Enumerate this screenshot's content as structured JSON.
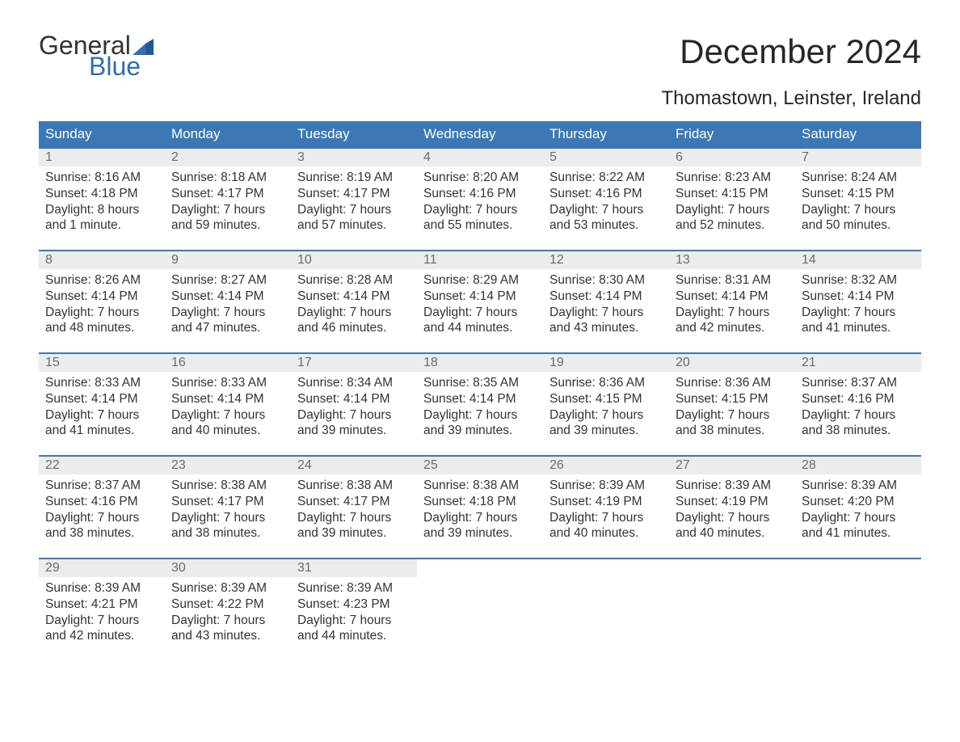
{
  "brand": {
    "word1": "General",
    "word2": "Blue",
    "text_color": "#333333",
    "accent_color": "#2f6fae"
  },
  "header": {
    "month_title": "December 2024",
    "location": "Thomastown, Leinster, Ireland"
  },
  "style": {
    "header_bg": "#3b78b5",
    "header_text": "#ffffff",
    "daynum_bg": "#ececec",
    "daynum_border": "#3b78b5",
    "daynum_text": "#6b6b6b",
    "body_text": "#333333",
    "page_bg": "#ffffff",
    "day_header_fontsize": 17,
    "title_fontsize": 42,
    "location_fontsize": 24,
    "cell_fontsize": 15.5
  },
  "day_headers": [
    "Sunday",
    "Monday",
    "Tuesday",
    "Wednesday",
    "Thursday",
    "Friday",
    "Saturday"
  ],
  "weeks": [
    [
      {
        "n": "1",
        "sr": "Sunrise: 8:16 AM",
        "ss": "Sunset: 4:18 PM",
        "d1": "Daylight: 8 hours",
        "d2": "and 1 minute."
      },
      {
        "n": "2",
        "sr": "Sunrise: 8:18 AM",
        "ss": "Sunset: 4:17 PM",
        "d1": "Daylight: 7 hours",
        "d2": "and 59 minutes."
      },
      {
        "n": "3",
        "sr": "Sunrise: 8:19 AM",
        "ss": "Sunset: 4:17 PM",
        "d1": "Daylight: 7 hours",
        "d2": "and 57 minutes."
      },
      {
        "n": "4",
        "sr": "Sunrise: 8:20 AM",
        "ss": "Sunset: 4:16 PM",
        "d1": "Daylight: 7 hours",
        "d2": "and 55 minutes."
      },
      {
        "n": "5",
        "sr": "Sunrise: 8:22 AM",
        "ss": "Sunset: 4:16 PM",
        "d1": "Daylight: 7 hours",
        "d2": "and 53 minutes."
      },
      {
        "n": "6",
        "sr": "Sunrise: 8:23 AM",
        "ss": "Sunset: 4:15 PM",
        "d1": "Daylight: 7 hours",
        "d2": "and 52 minutes."
      },
      {
        "n": "7",
        "sr": "Sunrise: 8:24 AM",
        "ss": "Sunset: 4:15 PM",
        "d1": "Daylight: 7 hours",
        "d2": "and 50 minutes."
      }
    ],
    [
      {
        "n": "8",
        "sr": "Sunrise: 8:26 AM",
        "ss": "Sunset: 4:14 PM",
        "d1": "Daylight: 7 hours",
        "d2": "and 48 minutes."
      },
      {
        "n": "9",
        "sr": "Sunrise: 8:27 AM",
        "ss": "Sunset: 4:14 PM",
        "d1": "Daylight: 7 hours",
        "d2": "and 47 minutes."
      },
      {
        "n": "10",
        "sr": "Sunrise: 8:28 AM",
        "ss": "Sunset: 4:14 PM",
        "d1": "Daylight: 7 hours",
        "d2": "and 46 minutes."
      },
      {
        "n": "11",
        "sr": "Sunrise: 8:29 AM",
        "ss": "Sunset: 4:14 PM",
        "d1": "Daylight: 7 hours",
        "d2": "and 44 minutes."
      },
      {
        "n": "12",
        "sr": "Sunrise: 8:30 AM",
        "ss": "Sunset: 4:14 PM",
        "d1": "Daylight: 7 hours",
        "d2": "and 43 minutes."
      },
      {
        "n": "13",
        "sr": "Sunrise: 8:31 AM",
        "ss": "Sunset: 4:14 PM",
        "d1": "Daylight: 7 hours",
        "d2": "and 42 minutes."
      },
      {
        "n": "14",
        "sr": "Sunrise: 8:32 AM",
        "ss": "Sunset: 4:14 PM",
        "d1": "Daylight: 7 hours",
        "d2": "and 41 minutes."
      }
    ],
    [
      {
        "n": "15",
        "sr": "Sunrise: 8:33 AM",
        "ss": "Sunset: 4:14 PM",
        "d1": "Daylight: 7 hours",
        "d2": "and 41 minutes."
      },
      {
        "n": "16",
        "sr": "Sunrise: 8:33 AM",
        "ss": "Sunset: 4:14 PM",
        "d1": "Daylight: 7 hours",
        "d2": "and 40 minutes."
      },
      {
        "n": "17",
        "sr": "Sunrise: 8:34 AM",
        "ss": "Sunset: 4:14 PM",
        "d1": "Daylight: 7 hours",
        "d2": "and 39 minutes."
      },
      {
        "n": "18",
        "sr": "Sunrise: 8:35 AM",
        "ss": "Sunset: 4:14 PM",
        "d1": "Daylight: 7 hours",
        "d2": "and 39 minutes."
      },
      {
        "n": "19",
        "sr": "Sunrise: 8:36 AM",
        "ss": "Sunset: 4:15 PM",
        "d1": "Daylight: 7 hours",
        "d2": "and 39 minutes."
      },
      {
        "n": "20",
        "sr": "Sunrise: 8:36 AM",
        "ss": "Sunset: 4:15 PM",
        "d1": "Daylight: 7 hours",
        "d2": "and 38 minutes."
      },
      {
        "n": "21",
        "sr": "Sunrise: 8:37 AM",
        "ss": "Sunset: 4:16 PM",
        "d1": "Daylight: 7 hours",
        "d2": "and 38 minutes."
      }
    ],
    [
      {
        "n": "22",
        "sr": "Sunrise: 8:37 AM",
        "ss": "Sunset: 4:16 PM",
        "d1": "Daylight: 7 hours",
        "d2": "and 38 minutes."
      },
      {
        "n": "23",
        "sr": "Sunrise: 8:38 AM",
        "ss": "Sunset: 4:17 PM",
        "d1": "Daylight: 7 hours",
        "d2": "and 38 minutes."
      },
      {
        "n": "24",
        "sr": "Sunrise: 8:38 AM",
        "ss": "Sunset: 4:17 PM",
        "d1": "Daylight: 7 hours",
        "d2": "and 39 minutes."
      },
      {
        "n": "25",
        "sr": "Sunrise: 8:38 AM",
        "ss": "Sunset: 4:18 PM",
        "d1": "Daylight: 7 hours",
        "d2": "and 39 minutes."
      },
      {
        "n": "26",
        "sr": "Sunrise: 8:39 AM",
        "ss": "Sunset: 4:19 PM",
        "d1": "Daylight: 7 hours",
        "d2": "and 40 minutes."
      },
      {
        "n": "27",
        "sr": "Sunrise: 8:39 AM",
        "ss": "Sunset: 4:19 PM",
        "d1": "Daylight: 7 hours",
        "d2": "and 40 minutes."
      },
      {
        "n": "28",
        "sr": "Sunrise: 8:39 AM",
        "ss": "Sunset: 4:20 PM",
        "d1": "Daylight: 7 hours",
        "d2": "and 41 minutes."
      }
    ],
    [
      {
        "n": "29",
        "sr": "Sunrise: 8:39 AM",
        "ss": "Sunset: 4:21 PM",
        "d1": "Daylight: 7 hours",
        "d2": "and 42 minutes."
      },
      {
        "n": "30",
        "sr": "Sunrise: 8:39 AM",
        "ss": "Sunset: 4:22 PM",
        "d1": "Daylight: 7 hours",
        "d2": "and 43 minutes."
      },
      {
        "n": "31",
        "sr": "Sunrise: 8:39 AM",
        "ss": "Sunset: 4:23 PM",
        "d1": "Daylight: 7 hours",
        "d2": "and 44 minutes."
      },
      null,
      null,
      null,
      null
    ]
  ]
}
